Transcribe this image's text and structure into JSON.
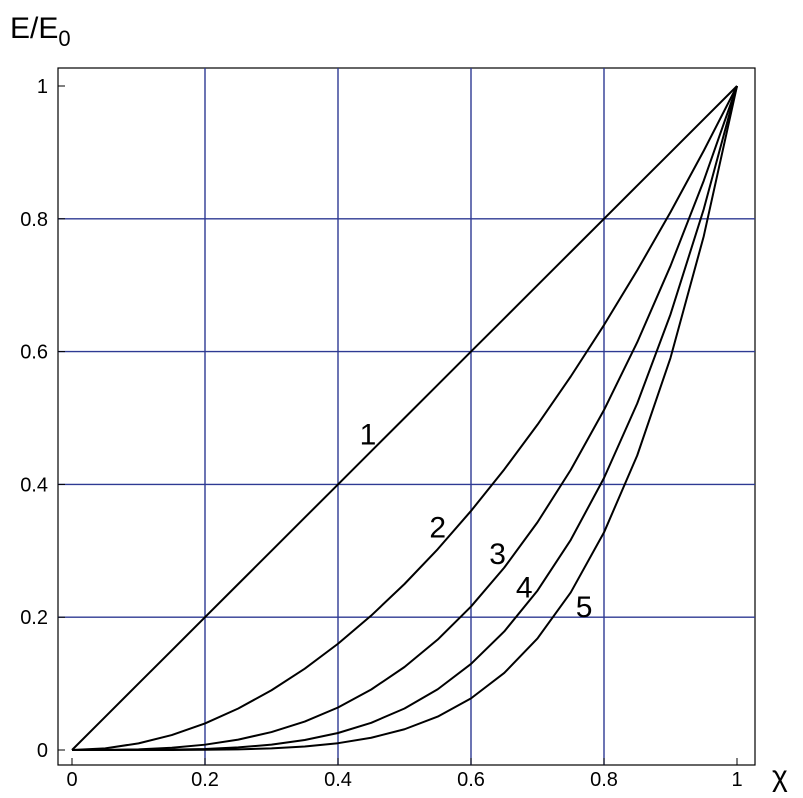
{
  "chart_data": {
    "type": "line",
    "ylabel": {
      "base": "E/E",
      "subscript": "0"
    },
    "xlabel": "χ",
    "xlim": [
      0,
      1
    ],
    "ylim": [
      0,
      1
    ],
    "grid": true,
    "grid_color": "#2e3a93",
    "line_color": "#000000",
    "xticks": [
      0,
      0.2,
      0.4,
      0.6,
      0.8,
      1
    ],
    "xtick_labels": [
      "0",
      "0.2",
      "0.4",
      "0.6",
      "0.8",
      "1"
    ],
    "yticks": [
      0,
      0.2,
      0.4,
      0.6,
      0.8,
      1
    ],
    "ytick_labels": [
      "0",
      "0.2",
      "0.4",
      "0.6",
      "0.8",
      "1"
    ],
    "x": [
      0,
      0.05,
      0.1,
      0.15,
      0.2,
      0.25,
      0.3,
      0.35,
      0.4,
      0.45,
      0.5,
      0.55,
      0.6,
      0.65,
      0.7,
      0.75,
      0.8,
      0.85,
      0.9,
      0.95,
      1
    ],
    "series": [
      {
        "label": "1",
        "label_at": [
          0.445,
          0.46
        ],
        "values": [
          0,
          0.05,
          0.1,
          0.15,
          0.2,
          0.25,
          0.3,
          0.35,
          0.4,
          0.45,
          0.5,
          0.55,
          0.6,
          0.65,
          0.7,
          0.75,
          0.8,
          0.85,
          0.9,
          0.95,
          1
        ]
      },
      {
        "label": "2",
        "label_at": [
          0.55,
          0.32
        ],
        "values": [
          0,
          0.0025,
          0.01,
          0.0225,
          0.04,
          0.0625,
          0.09,
          0.1225,
          0.16,
          0.2025,
          0.25,
          0.3025,
          0.36,
          0.4225,
          0.49,
          0.5625,
          0.64,
          0.7225,
          0.81,
          0.9025,
          1
        ]
      },
      {
        "label": "3",
        "label_at": [
          0.64,
          0.28
        ],
        "values": [
          0,
          0.000125,
          0.001,
          0.003375,
          0.008,
          0.015625,
          0.027,
          0.042875,
          0.064,
          0.091125,
          0.125,
          0.166375,
          0.216,
          0.274625,
          0.343,
          0.421875,
          0.512,
          0.614125,
          0.729,
          0.857375,
          1
        ]
      },
      {
        "label": "4",
        "label_at": [
          0.68,
          0.23
        ],
        "values": [
          0,
          6.25e-06,
          0.0001,
          0.00050625,
          0.0016,
          0.00390625,
          0.0081,
          0.01500625,
          0.0256,
          0.04100625,
          0.0625,
          0.09150625,
          0.1296,
          0.17850625,
          0.2401,
          0.31640625,
          0.4096,
          0.52200625,
          0.6561,
          0.81450625,
          1
        ]
      },
      {
        "label": "5",
        "label_at": [
          0.77,
          0.2
        ],
        "values": [
          0,
          3e-07,
          1e-05,
          7.6e-05,
          0.00032,
          0.00098,
          0.00243,
          0.00525,
          0.01024,
          0.01845,
          0.03125,
          0.05033,
          0.07776,
          0.11603,
          0.16807,
          0.2373,
          0.32768,
          0.4437,
          0.59049,
          0.77378,
          1
        ]
      }
    ]
  }
}
